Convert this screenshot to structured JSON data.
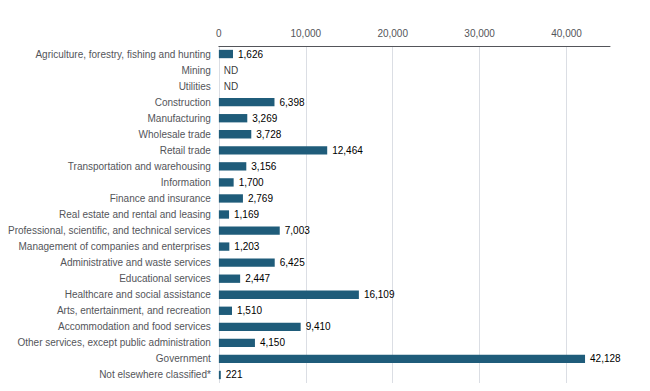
{
  "chart_data": {
    "type": "bar",
    "orientation": "horizontal",
    "categories": [
      "Agriculture, forestry, fishing and hunting",
      "Mining",
      "Utilities",
      "Construction",
      "Manufacturing",
      "Wholesale trade",
      "Retail trade",
      "Transportation and warehousing",
      "Information",
      "Finance and insurance",
      "Real estate and rental and leasing",
      "Professional, scientific, and technical services",
      "Management of companies and enterprises",
      "Administrative and waste services",
      "Educational services",
      "Healthcare and social assistance",
      "Arts, entertainment, and recreation",
      "Accommodation and food services",
      "Other services, except public administration",
      "Government",
      "Not elsewhere classified*"
    ],
    "values": [
      1626,
      null,
      null,
      6398,
      3269,
      3728,
      12464,
      3156,
      1700,
      2769,
      1169,
      7003,
      1203,
      6425,
      2447,
      16109,
      1510,
      9410,
      4150,
      42128,
      221
    ],
    "value_labels": [
      "1,626",
      "ND",
      "ND",
      "6,398",
      "3,269",
      "3,728",
      "12,464",
      "3,156",
      "1,700",
      "2,769",
      "1,169",
      "7,003",
      "1,203",
      "6,425",
      "2,447",
      "16,109",
      "1,510",
      "9,410",
      "4,150",
      "42,128",
      "221"
    ],
    "data_labels": true,
    "color": "#1f5c7a",
    "xlim": [
      0,
      45000
    ],
    "xticks": [
      0,
      {
        "value": 10000,
        "label": "10,000"
      },
      {
        "value": 20000,
        "label": "20,000"
      },
      {
        "value": 30000,
        "label": "30,000"
      },
      {
        "value": 40000,
        "label": "40,000"
      }
    ],
    "grid": true
  }
}
